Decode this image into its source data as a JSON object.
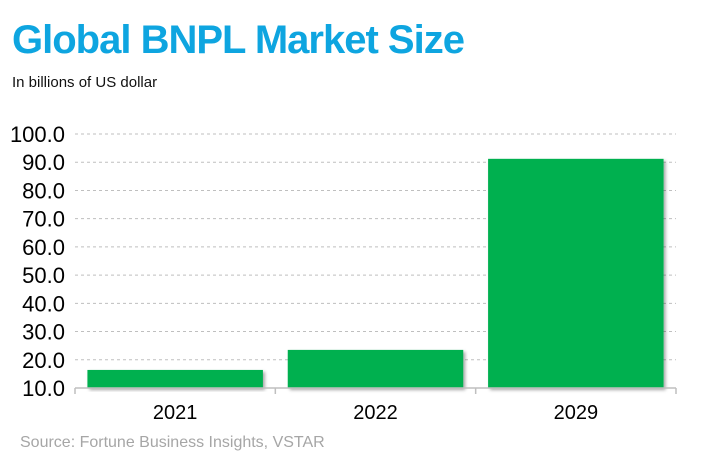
{
  "colors": {
    "title": "#0ea5e0",
    "bar": "#00b050",
    "gridline": "#bfbfbf",
    "axis": "#bfbfbf",
    "source": "#a6a6a6"
  },
  "header": {
    "title": "Global BNPL Market Size",
    "subtitle": "In billions  of US dollar"
  },
  "footer": {
    "source": "Source: Fortune Business Insights, VSTAR"
  },
  "chart_data": {
    "type": "bar",
    "title": "Global BNPL Market Size",
    "subtitle": "In billions  of US dollar",
    "categories": [
      "2021",
      "2022",
      "2029"
    ],
    "series": [
      {
        "values": [
          16.4,
          23.5,
          91.2
        ]
      }
    ],
    "xlabel": "",
    "ylabel": "",
    "ylim": [
      10,
      100
    ],
    "yticks": [
      "10.0",
      "20.0",
      "30.0",
      "40.0",
      "50.0",
      "60.0",
      "70.0",
      "80.0",
      "90.0",
      "100.0"
    ],
    "grid": true,
    "legend": "none",
    "source": "Source: Fortune Business Insights, VSTAR"
  }
}
